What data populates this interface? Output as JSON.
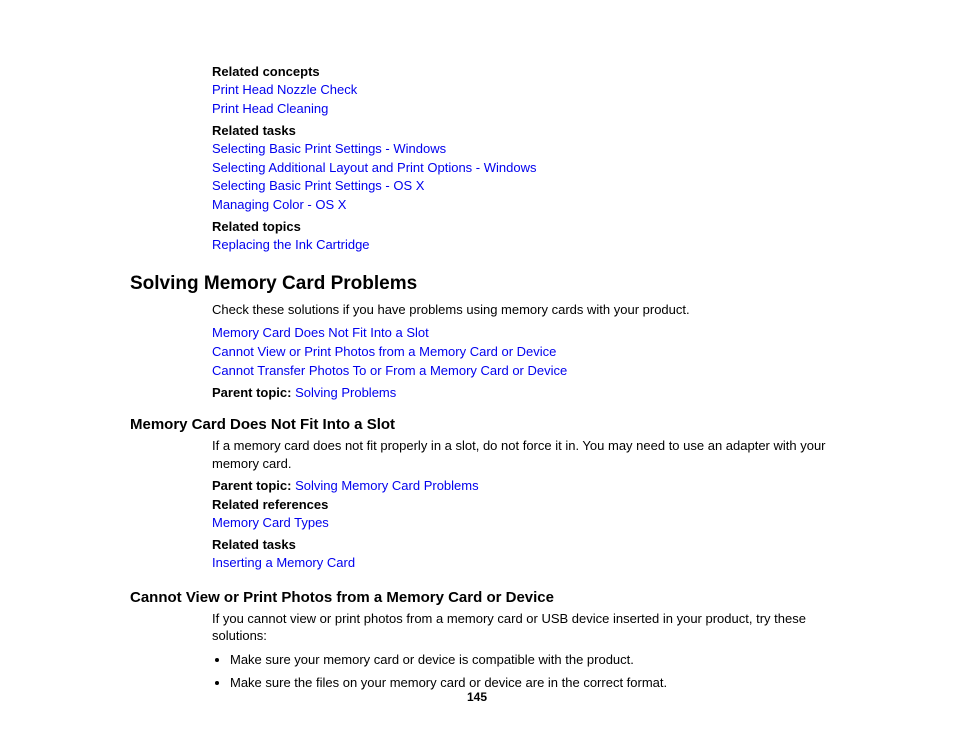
{
  "top_block": {
    "related_concepts_label": "Related concepts",
    "related_concepts_links": [
      "Print Head Nozzle Check",
      "Print Head Cleaning"
    ],
    "related_tasks_label": "Related tasks",
    "related_tasks_links": [
      "Selecting Basic Print Settings - Windows",
      "Selecting Additional Layout and Print Options - Windows",
      "Selecting Basic Print Settings - OS X",
      "Managing Color - OS X"
    ],
    "related_topics_label": "Related topics",
    "related_topics_links": [
      "Replacing the Ink Cartridge"
    ]
  },
  "section1": {
    "heading": "Solving Memory Card Problems",
    "intro": "Check these solutions if you have problems using memory cards with your product.",
    "links": [
      "Memory Card Does Not Fit Into a Slot",
      "Cannot View or Print Photos from a Memory Card or Device",
      "Cannot Transfer Photos To or From a Memory Card or Device"
    ],
    "parent_label": "Parent topic:",
    "parent_link": "Solving Problems"
  },
  "section2": {
    "heading": "Memory Card Does Not Fit Into a Slot",
    "body": "If a memory card does not fit properly in a slot, do not force it in. You may need to use an adapter with your memory card.",
    "parent_label": "Parent topic:",
    "parent_link": "Solving Memory Card Problems",
    "related_references_label": "Related references",
    "related_references_links": [
      "Memory Card Types"
    ],
    "related_tasks_label": "Related tasks",
    "related_tasks_links": [
      "Inserting a Memory Card"
    ]
  },
  "section3": {
    "heading": "Cannot View or Print Photos from a Memory Card or Device",
    "body": "If you cannot view or print photos from a memory card or USB device inserted in your product, try these solutions:",
    "bullets": [
      "Make sure your memory card or device is compatible with the product.",
      "Make sure the files on your memory card or device are in the correct format."
    ]
  },
  "page_number": "145"
}
